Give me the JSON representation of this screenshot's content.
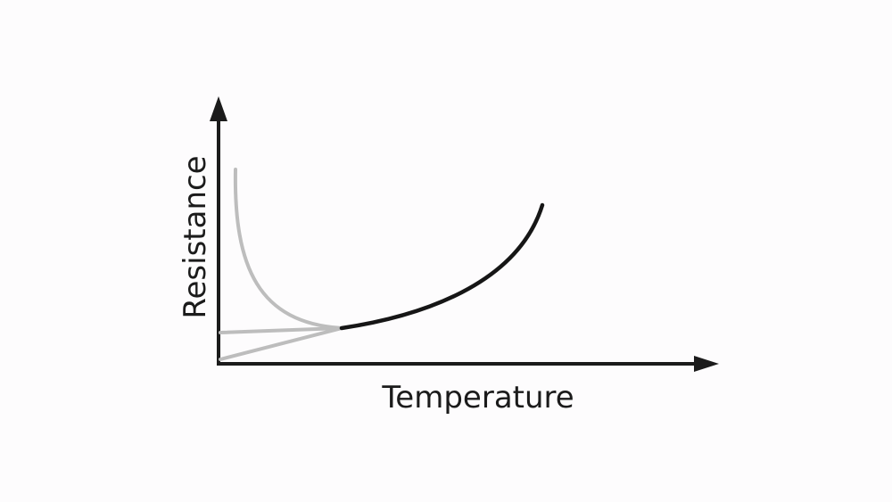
{
  "diagram": {
    "x_axis_label": "Temperature",
    "y_axis_label": "Resistance",
    "colors": {
      "axes": "#1b1b1b",
      "highlighted_curve": "#161616",
      "faded_curves": "#bdbdbd",
      "background": "#fdfcfd"
    }
  }
}
